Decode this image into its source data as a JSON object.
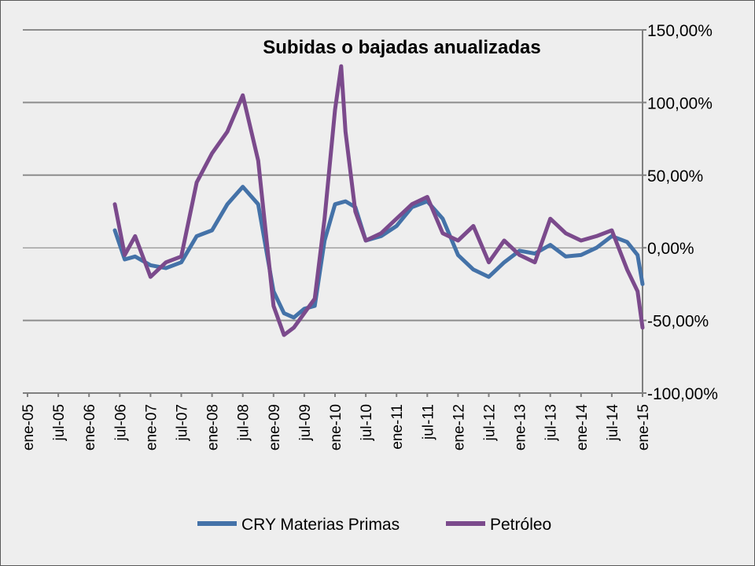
{
  "chart_data": {
    "type": "line",
    "title": "Subidas o bajadas anualizadas",
    "xlabel": "",
    "ylabel": "",
    "y_axis_side": "right",
    "ylim": [
      -1.0,
      1.5
    ],
    "y_ticks": [
      1.5,
      1.0,
      0.5,
      0.0,
      -0.5,
      -1.0
    ],
    "y_tick_labels": [
      "150,00%",
      "100,00%",
      "50,00%",
      "0,00%",
      "-50,00%",
      "-100,00%"
    ],
    "x_tick_labels": [
      "ene-05",
      "jul-05",
      "ene-06",
      "jul-06",
      "ene-07",
      "jul-07",
      "ene-08",
      "jul-08",
      "ene-09",
      "jul-09",
      "ene-10",
      "jul-10",
      "ene-11",
      "jul-11",
      "ene-12",
      "jul-12",
      "ene-13",
      "jul-13",
      "ene-14",
      "jul-14",
      "ene-15"
    ],
    "gridlines": "horizontal",
    "legend_position": "bottom",
    "colors": {
      "cry": "#4472a8",
      "petroleo": "#7b4a8c",
      "grid": "#8c8c8c",
      "background": "#eeeeee"
    },
    "series": [
      {
        "name": "CRY Materias Primas",
        "color": "#4472a8",
        "x": [
          2006.42,
          2006.58,
          2006.75,
          2007.0,
          2007.25,
          2007.5,
          2007.75,
          2008.0,
          2008.25,
          2008.5,
          2008.75,
          2009.0,
          2009.17,
          2009.33,
          2009.5,
          2009.67,
          2009.83,
          2010.0,
          2010.17,
          2010.33,
          2010.5,
          2010.75,
          2011.0,
          2011.25,
          2011.5,
          2011.75,
          2012.0,
          2012.25,
          2012.5,
          2012.75,
          2013.0,
          2013.25,
          2013.5,
          2013.75,
          2014.0,
          2014.25,
          2014.5,
          2014.75,
          2014.92,
          2015.0
        ],
        "y": [
          0.12,
          -0.08,
          -0.06,
          -0.12,
          -0.14,
          -0.1,
          0.08,
          0.12,
          0.3,
          0.42,
          0.3,
          -0.3,
          -0.45,
          -0.48,
          -0.42,
          -0.4,
          0.05,
          0.3,
          0.32,
          0.28,
          0.05,
          0.08,
          0.15,
          0.28,
          0.32,
          0.2,
          -0.05,
          -0.15,
          -0.2,
          -0.1,
          -0.02,
          -0.04,
          0.02,
          -0.06,
          -0.05,
          0.0,
          0.08,
          0.04,
          -0.05,
          -0.25
        ]
      },
      {
        "name": "Petróleo",
        "color": "#7b4a8c",
        "x": [
          2006.42,
          2006.58,
          2006.75,
          2007.0,
          2007.25,
          2007.5,
          2007.75,
          2008.0,
          2008.25,
          2008.5,
          2008.75,
          2009.0,
          2009.17,
          2009.33,
          2009.5,
          2009.67,
          2009.83,
          2010.0,
          2010.1,
          2010.17,
          2010.33,
          2010.5,
          2010.75,
          2011.0,
          2011.25,
          2011.5,
          2011.75,
          2012.0,
          2012.25,
          2012.5,
          2012.75,
          2013.0,
          2013.25,
          2013.5,
          2013.75,
          2014.0,
          2014.25,
          2014.5,
          2014.75,
          2014.92,
          2015.0
        ],
        "y": [
          0.3,
          -0.05,
          0.08,
          -0.2,
          -0.1,
          -0.06,
          0.45,
          0.65,
          0.8,
          1.05,
          0.6,
          -0.4,
          -0.6,
          -0.55,
          -0.45,
          -0.35,
          0.2,
          0.95,
          1.25,
          0.8,
          0.25,
          0.05,
          0.1,
          0.2,
          0.3,
          0.35,
          0.1,
          0.05,
          0.15,
          -0.1,
          0.05,
          -0.05,
          -0.1,
          0.2,
          0.1,
          0.05,
          0.08,
          0.12,
          -0.15,
          -0.3,
          -0.55
        ]
      }
    ]
  }
}
